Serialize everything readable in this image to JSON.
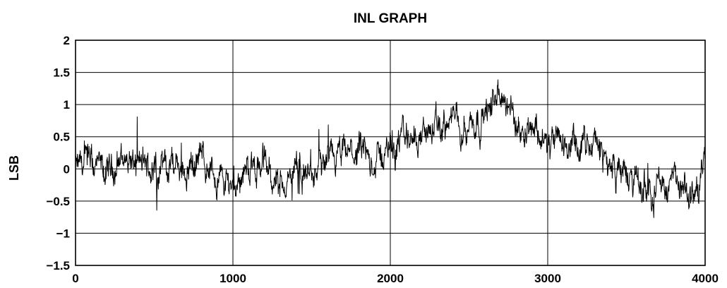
{
  "chart_data": {
    "type": "line",
    "title": "INL GRAPH",
    "xlabel": "",
    "ylabel": "LSB",
    "xlim": [
      0,
      4000
    ],
    "ylim": [
      -1.5,
      2
    ],
    "grid": true,
    "x_ticks": [
      0,
      1000,
      2000,
      3000,
      4000
    ],
    "x_tick_labels": [
      "0",
      "1000",
      "2000",
      "3000",
      "4000"
    ],
    "y_ticks": [
      -1.5,
      -1,
      -0.5,
      0,
      0.5,
      1,
      1.5,
      2
    ],
    "y_tick_labels": [
      "−1.5",
      "−1",
      "−0.5",
      "0",
      "0.5",
      "1",
      "1.5",
      "2"
    ],
    "line_color": "#000000",
    "series": [
      {
        "x": [
          0,
          100,
          200,
          300,
          400,
          500,
          600,
          700,
          800,
          900,
          1000,
          1100,
          1200,
          1300,
          1400,
          1500,
          1600,
          1700,
          1800,
          1900,
          2000,
          2100,
          2200,
          2300,
          2400,
          2500,
          2600,
          2700,
          2800,
          2900,
          3000,
          3100,
          3200,
          3300,
          3400,
          3500,
          3600,
          3700,
          3800,
          3900,
          4000
        ],
        "values": [
          0.0,
          0.05,
          -0.1,
          0.2,
          0.05,
          0.0,
          0.1,
          0.0,
          0.2,
          -0.15,
          -0.2,
          0.0,
          0.1,
          -0.3,
          -0.05,
          -0.1,
          0.05,
          0.2,
          0.25,
          0.1,
          0.35,
          0.5,
          0.55,
          0.6,
          0.75,
          0.7,
          0.85,
          1.15,
          0.7,
          0.75,
          0.35,
          0.4,
          0.3,
          0.4,
          0.05,
          -0.1,
          -0.3,
          -0.25,
          -0.2,
          -0.5,
          0.05
        ]
      }
    ],
    "noise_amplitude": 0.3
  }
}
